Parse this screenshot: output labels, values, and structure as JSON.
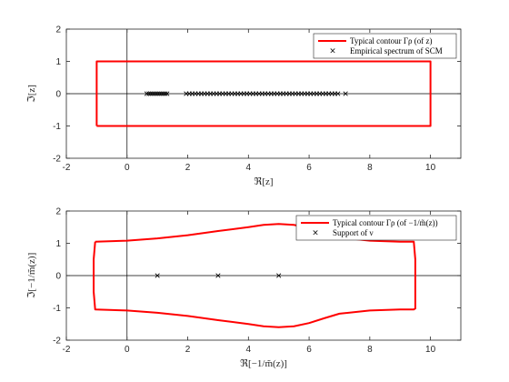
{
  "colors": {
    "contour": "#ff0000",
    "marker": "#000000",
    "axes": "#262626",
    "zero_lines": "#000000"
  },
  "chart_data": [
    {
      "type": "scatter",
      "xlim": [
        -2,
        11
      ],
      "ylim": [
        -2,
        2
      ],
      "x_ticks": [
        -2,
        0,
        2,
        4,
        6,
        8,
        10
      ],
      "y_ticks": [
        -2,
        -1,
        0,
        1,
        2
      ],
      "tick_labels_x": [
        "-2",
        "0",
        "2",
        "4",
        "6",
        "8",
        "10"
      ],
      "tick_labels_y": [
        "-2",
        "-1",
        "0",
        "1",
        "2"
      ],
      "xlabel": "ℜ[z]",
      "ylabel": "ℑ[z]",
      "legend_position": "top-right",
      "series": [
        {
          "name": "Typical contour Γρ (of z)",
          "kind": "line",
          "x": [
            -1,
            10,
            10,
            -1,
            -1
          ],
          "y": [
            -1,
            -1,
            1,
            1,
            -1
          ]
        },
        {
          "name": "Empirical spectrum of SCM",
          "kind": "points",
          "x": [
            0.65,
            0.72,
            0.78,
            0.84,
            0.9,
            0.96,
            1.02,
            1.08,
            1.14,
            1.2,
            1.26,
            1.32,
            1.95,
            2.05,
            2.15,
            2.25,
            2.35,
            2.45,
            2.55,
            2.65,
            2.75,
            2.85,
            2.95,
            3.05,
            3.15,
            3.25,
            3.35,
            3.45,
            3.55,
            3.65,
            3.75,
            3.85,
            3.95,
            4.05,
            4.15,
            4.25,
            4.35,
            4.45,
            4.55,
            4.65,
            4.75,
            4.85,
            4.95,
            5.05,
            5.15,
            5.25,
            5.35,
            5.45,
            5.55,
            5.65,
            5.75,
            5.85,
            5.95,
            6.05,
            6.15,
            6.25,
            6.35,
            6.45,
            6.55,
            6.65,
            6.75,
            6.85,
            6.95,
            7.2
          ],
          "y": [
            0,
            0,
            0,
            0,
            0,
            0,
            0,
            0,
            0,
            0,
            0,
            0,
            0,
            0,
            0,
            0,
            0,
            0,
            0,
            0,
            0,
            0,
            0,
            0,
            0,
            0,
            0,
            0,
            0,
            0,
            0,
            0,
            0,
            0,
            0,
            0,
            0,
            0,
            0,
            0,
            0,
            0,
            0,
            0,
            0,
            0,
            0,
            0,
            0,
            0,
            0,
            0,
            0,
            0,
            0,
            0,
            0,
            0,
            0,
            0,
            0,
            0,
            0,
            0
          ]
        }
      ]
    },
    {
      "type": "scatter",
      "xlim": [
        -2,
        11
      ],
      "ylim": [
        -2,
        2
      ],
      "x_ticks": [
        -2,
        0,
        2,
        4,
        6,
        8,
        10
      ],
      "y_ticks": [
        -2,
        -1,
        0,
        1,
        2
      ],
      "tick_labels_x": [
        "-2",
        "0",
        "2",
        "4",
        "6",
        "8",
        "10"
      ],
      "tick_labels_y": [
        "-2",
        "-1",
        "0",
        "1",
        "2"
      ],
      "xlabel": "ℜ[−1/m̃(z)]",
      "ylabel": "ℑ[−1/m̃(z)]",
      "legend_position": "top-right",
      "series": [
        {
          "name": "Typical contour Γρ (of −1/m̃(z))",
          "kind": "line",
          "x": [
            -1.05,
            0.0,
            1.0,
            2.0,
            3.0,
            4.0,
            4.5,
            5.0,
            5.5,
            6.0,
            6.5,
            7.0,
            8.0,
            9.0,
            9.45,
            9.5,
            9.5,
            9.45,
            9.0,
            8.0,
            7.0,
            6.5,
            6.0,
            5.5,
            5.0,
            4.5,
            4.0,
            3.0,
            2.0,
            1.0,
            0.0,
            -1.05,
            -1.1,
            -1.1,
            -1.05
          ],
          "y": [
            1.05,
            1.08,
            1.15,
            1.25,
            1.38,
            1.5,
            1.57,
            1.6,
            1.57,
            1.47,
            1.32,
            1.18,
            1.08,
            1.05,
            1.05,
            0.5,
            -1.02,
            -1.05,
            -1.05,
            -1.08,
            -1.18,
            -1.32,
            -1.47,
            -1.57,
            -1.6,
            -1.57,
            -1.5,
            -1.38,
            -1.25,
            -1.15,
            -1.08,
            -1.05,
            -0.5,
            0.5,
            1.05
          ]
        },
        {
          "name": "Support of ν",
          "kind": "points",
          "x": [
            1,
            3,
            5
          ],
          "y": [
            0,
            0,
            0
          ]
        }
      ]
    }
  ]
}
